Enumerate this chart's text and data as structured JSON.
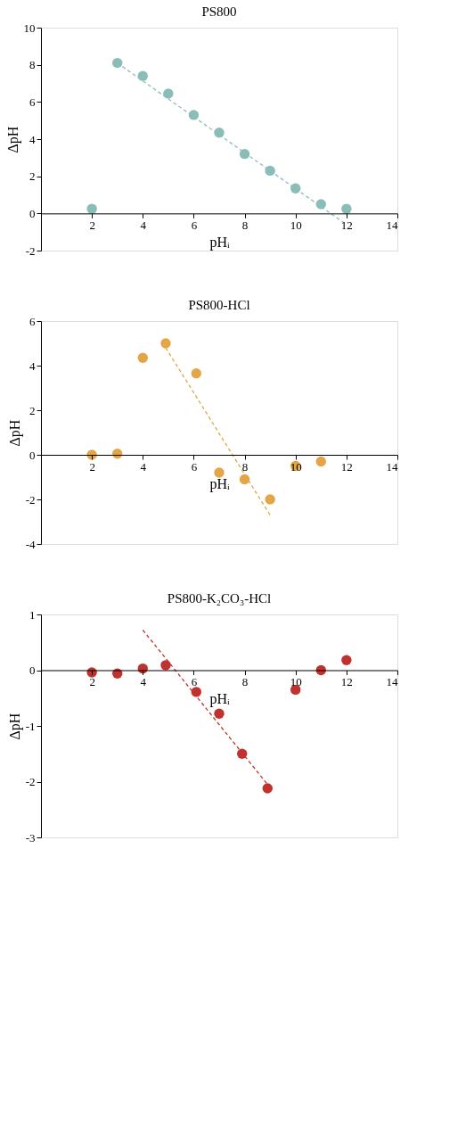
{
  "chart_data": [
    {
      "type": "scatter",
      "title": "PS800",
      "xlabel": "pHᵢ",
      "ylabel": "ΔpH",
      "xlim": [
        0,
        14
      ],
      "xticks": [
        2,
        4,
        6,
        8,
        10,
        12,
        14
      ],
      "ylim": [
        -2,
        10
      ],
      "yticks": [
        -2,
        0,
        2,
        4,
        6,
        8,
        10
      ],
      "grid": false,
      "series": [
        {
          "color": "#8bbdb8",
          "marker": "circle",
          "x": [
            2,
            3,
            4,
            5,
            6,
            7,
            8,
            9,
            10,
            11,
            12
          ],
          "values": [
            0.25,
            8.1,
            7.4,
            6.45,
            5.3,
            4.35,
            3.2,
            2.3,
            1.35,
            0.5,
            0.25
          ]
        },
        {
          "type": "line",
          "color": "#8bbdb8",
          "line_style": "dashed",
          "x": [
            3,
            12
          ],
          "values": [
            8.1,
            -0.6
          ]
        }
      ]
    },
    {
      "type": "scatter",
      "title": "PS800-HCl",
      "xlabel": "pHᵢ",
      "ylabel": "ΔpH",
      "xlim": [
        0,
        14
      ],
      "xticks": [
        2,
        4,
        6,
        8,
        10,
        12,
        14
      ],
      "ylim": [
        -4,
        6
      ],
      "yticks": [
        -4,
        -2,
        0,
        2,
        4,
        6
      ],
      "grid": false,
      "series": [
        {
          "color": "#e3a545",
          "marker": "circle",
          "x": [
            2,
            3,
            4,
            4.9,
            6.1,
            7,
            8,
            9,
            10,
            11
          ],
          "values": [
            0,
            0.05,
            4.35,
            5,
            3.65,
            -0.8,
            -1.1,
            -2,
            -0.5,
            -0.3
          ]
        },
        {
          "type": "line",
          "color": "#e3a545",
          "line_style": "dashed",
          "x": [
            4.9,
            9
          ],
          "values": [
            4.8,
            -2.7
          ]
        }
      ]
    },
    {
      "type": "scatter",
      "title": "PS800-K₂CO₃-HCl",
      "xlabel": "pHᵢ",
      "ylabel": "ΔpH",
      "xlim": [
        0,
        14
      ],
      "xticks": [
        2,
        4,
        6,
        8,
        10,
        12,
        14
      ],
      "ylim": [
        -3,
        1
      ],
      "yticks": [
        -3,
        -2,
        -1,
        0,
        1
      ],
      "grid": false,
      "series": [
        {
          "color": "#c0322e",
          "marker": "circle",
          "x": [
            2,
            3,
            4,
            4.9,
            6.1,
            7,
            7.9,
            8.9,
            10,
            11,
            12
          ],
          "values": [
            -0.04,
            -0.06,
            0.03,
            0.09,
            -0.39,
            -0.78,
            -1.5,
            -2.12,
            -0.35,
            0,
            0.18
          ]
        },
        {
          "type": "line",
          "color": "#c0322e",
          "line_style": "dashed",
          "x": [
            4,
            8.9
          ],
          "values": [
            0.72,
            -2.05
          ]
        }
      ]
    }
  ]
}
